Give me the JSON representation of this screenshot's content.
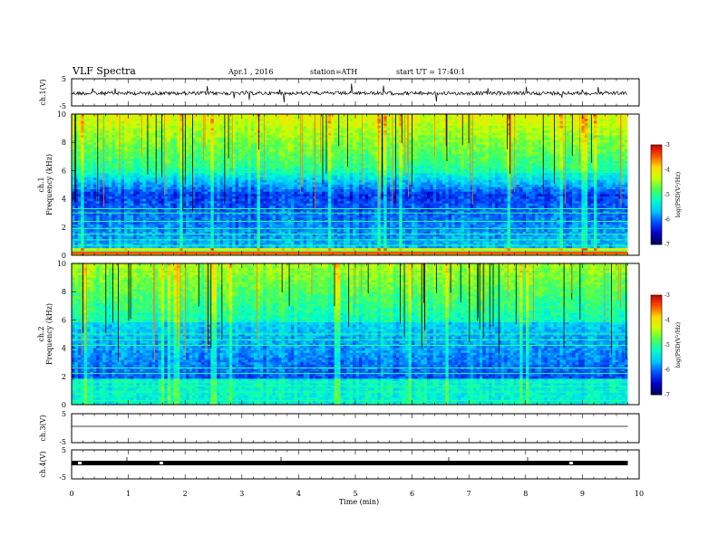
{
  "header": {
    "title": "VLF  Spectra",
    "date": "Apr.1  , 2016",
    "station": "station=ATH",
    "start_ut": "start  UT  =   17:40:1"
  },
  "chart_data": {
    "type": "heatmap",
    "xlabel": "Time  (min)",
    "xlim": [
      0,
      10
    ],
    "xticks": [
      "0",
      "1",
      "2",
      "3",
      "4",
      "5",
      "6",
      "7",
      "8",
      "9",
      "10"
    ],
    "panels": [
      {
        "id": "ch1v",
        "type": "line",
        "ylabel": "ch.1(V)",
        "ylim": [
          -5,
          5
        ],
        "yticks": [
          "5",
          "-5"
        ]
      },
      {
        "id": "ch1spec",
        "type": "heatmap",
        "ylabel": "ch.1\nFrequency  (kHz)",
        "ylim": [
          0,
          10
        ],
        "yticks": [
          "0",
          "2",
          "4",
          "6",
          "8",
          "10"
        ],
        "colorbar": {
          "label": "log(PSD(V²/Hz)",
          "range": [
            -7,
            -3
          ],
          "ticks": [
            "-3",
            "-4",
            "-5",
            "-6",
            "-7"
          ]
        }
      },
      {
        "id": "ch2spec",
        "type": "heatmap",
        "ylabel": "ch.2\nFrequency  (kHz)",
        "ylim": [
          0,
          10
        ],
        "yticks": [
          "0",
          "2",
          "4",
          "6",
          "8",
          "10"
        ],
        "colorbar": {
          "label": "log(PSD(V²/Hz)",
          "range": [
            -7,
            -3
          ],
          "ticks": [
            "-3",
            "-4",
            "-5",
            "-6",
            "-7"
          ]
        }
      },
      {
        "id": "ch3v",
        "type": "line",
        "ylabel": "ch.3(V)",
        "ylim": [
          -5,
          5
        ],
        "yticks": [
          "5"
        ]
      },
      {
        "id": "ch4v",
        "type": "line",
        "ylabel": "ch.4(V)",
        "ylim": [
          -5,
          5
        ],
        "yticks": [
          "-5",
          "5",
          "-5"
        ]
      }
    ],
    "data_end_min": 9.8
  },
  "colors": {
    "colormap": [
      "#000050",
      "#0000c8",
      "#0050ff",
      "#00c8ff",
      "#00ffc8",
      "#50ff50",
      "#c8ff00",
      "#ffdc00",
      "#ff5000",
      "#c80000",
      "#ffffff"
    ]
  }
}
